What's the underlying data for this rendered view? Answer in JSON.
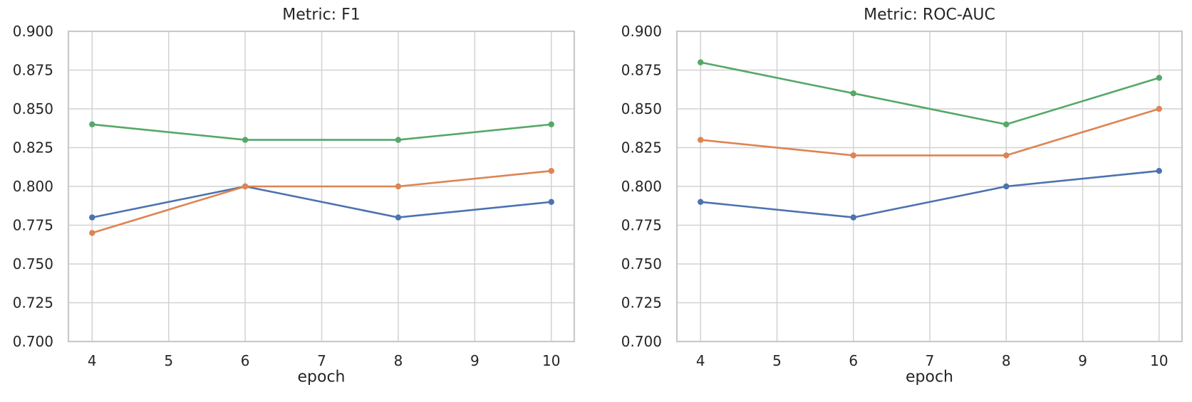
{
  "figure": {
    "background": "#ffffff",
    "text_color": "#262626",
    "grid_color": "#d2d2d2",
    "spine_color": "#c9c9c9"
  },
  "chart_data": [
    {
      "type": "line",
      "title": "Metric: F1",
      "xlabel": "epoch",
      "ylabel": "",
      "grid": true,
      "legend": "none",
      "x": [
        4,
        6,
        8,
        10
      ],
      "xticks": [
        4,
        5,
        6,
        7,
        8,
        9,
        10
      ],
      "xtick_labels": [
        "4",
        "5",
        "6",
        "7",
        "8",
        "9",
        "10"
      ],
      "yticks": [
        0.7,
        0.725,
        0.75,
        0.775,
        0.8,
        0.825,
        0.85,
        0.875,
        0.9
      ],
      "ytick_labels": [
        "0.700",
        "0.725",
        "0.750",
        "0.775",
        "0.800",
        "0.825",
        "0.850",
        "0.875",
        "0.900"
      ],
      "xlim": [
        3.69,
        10.3
      ],
      "ylim": [
        0.7,
        0.9
      ],
      "series": [
        {
          "name": "blue-series",
          "color": "#4C72B0",
          "values": [
            0.78,
            0.8,
            0.78,
            0.79
          ]
        },
        {
          "name": "orange-series",
          "color": "#DD8452",
          "values": [
            0.77,
            0.8,
            0.8,
            0.81
          ]
        },
        {
          "name": "green-series",
          "color": "#55A868",
          "values": [
            0.84,
            0.83,
            0.83,
            0.84
          ]
        }
      ]
    },
    {
      "type": "line",
      "title": "Metric: ROC-AUC",
      "xlabel": "epoch",
      "ylabel": "",
      "grid": true,
      "legend": "none",
      "x": [
        4,
        6,
        8,
        10
      ],
      "xticks": [
        4,
        5,
        6,
        7,
        8,
        9,
        10
      ],
      "xtick_labels": [
        "4",
        "5",
        "6",
        "7",
        "8",
        "9",
        "10"
      ],
      "yticks": [
        0.7,
        0.725,
        0.75,
        0.775,
        0.8,
        0.825,
        0.85,
        0.875,
        0.9
      ],
      "ytick_labels": [
        "0.700",
        "0.725",
        "0.750",
        "0.775",
        "0.800",
        "0.825",
        "0.850",
        "0.875",
        "0.900"
      ],
      "xlim": [
        3.69,
        10.3
      ],
      "ylim": [
        0.7,
        0.9
      ],
      "series": [
        {
          "name": "blue-series",
          "color": "#4C72B0",
          "values": [
            0.79,
            0.78,
            0.8,
            0.81
          ]
        },
        {
          "name": "orange-series",
          "color": "#DD8452",
          "values": [
            0.83,
            0.82,
            0.82,
            0.85
          ]
        },
        {
          "name": "green-series",
          "color": "#55A868",
          "values": [
            0.88,
            0.86,
            0.84,
            0.87
          ]
        }
      ]
    }
  ]
}
